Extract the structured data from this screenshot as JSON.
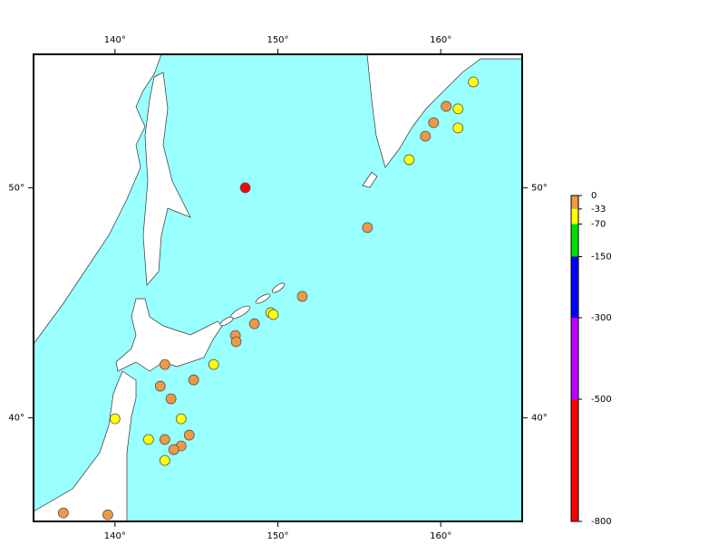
{
  "chart_data": {
    "type": "scatter",
    "xlim": [
      135,
      165
    ],
    "ylim": [
      35.5,
      55.8
    ],
    "xticks": [
      {
        "value": 140,
        "label": "140°"
      },
      {
        "value": 150,
        "label": "150°"
      },
      {
        "value": 160,
        "label": "160°"
      }
    ],
    "yticks": [
      {
        "value": 40,
        "label": "40°"
      },
      {
        "value": 50,
        "label": "50°"
      }
    ],
    "x": [
      148.0,
      155.5,
      151.5,
      149.56,
      149.72,
      148.56,
      147.39,
      147.44,
      146.06,
      143.06,
      144.83,
      142.78,
      143.44,
      144.06,
      140.0,
      142.06,
      143.06,
      144.56,
      144.06,
      143.61,
      143.06,
      136.83,
      139.56,
      158.06,
      159.06,
      159.56,
      160.33,
      161.06,
      161.06,
      162.0
    ],
    "values": [
      50.0,
      48.27,
      45.28,
      44.57,
      44.49,
      44.09,
      43.58,
      43.31,
      42.32,
      42.32,
      41.65,
      41.38,
      40.83,
      39.96,
      39.96,
      39.06,
      39.06,
      39.25,
      38.78,
      38.62,
      38.15,
      35.87,
      35.79,
      51.22,
      52.24,
      52.83,
      53.54,
      53.43,
      52.6,
      54.6
    ],
    "point_colors": [
      "#ff0000",
      "#ee9944",
      "#ee9944",
      "#ffff00",
      "#ffff00",
      "#ee9944",
      "#ee9944",
      "#ee9944",
      "#ffff00",
      "#ee9944",
      "#ee9944",
      "#ee9944",
      "#ee9944",
      "#ffff00",
      "#ffff00",
      "#ffff00",
      "#ee9944",
      "#ee9944",
      "#ee9944",
      "#ee9944",
      "#ffff00",
      "#ee9944",
      "#ee9944",
      "#ffff00",
      "#ee9944",
      "#ee9944",
      "#ee9944",
      "#ffff00",
      "#ffff00",
      "#ffff00"
    ],
    "colorbar": {
      "lim": [
        0,
        -800
      ],
      "ticks": [
        0,
        -33,
        -70,
        -150,
        -300,
        -500,
        -800
      ],
      "colors": [
        "#ee9944",
        "#ffff00",
        "#00dd00",
        "#0000ff",
        "#bb00ff",
        "#ff0000"
      ]
    }
  }
}
